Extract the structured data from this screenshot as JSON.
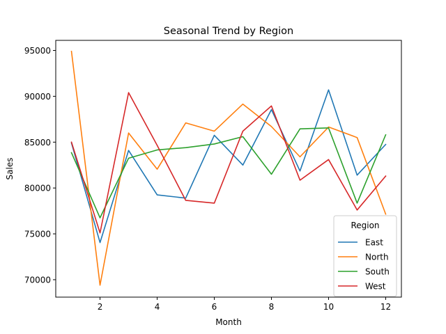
{
  "chart_data": {
    "type": "line",
    "title": "Seasonal Trend by Region",
    "xlabel": "Month",
    "ylabel": "Sales",
    "xlim": [
      0.45,
      12.55
    ],
    "ylim": [
      68100,
      96100
    ],
    "xticks": [
      2,
      4,
      6,
      8,
      10,
      12
    ],
    "yticks": [
      70000,
      75000,
      80000,
      85000,
      90000,
      95000
    ],
    "grid": false,
    "legend": {
      "title": "Region",
      "placement": "lower-right"
    },
    "x": [
      1,
      2,
      3,
      4,
      5,
      6,
      7,
      8,
      9,
      10,
      11,
      12
    ],
    "series": [
      {
        "name": "East",
        "color": "#1f77b4",
        "values": [
          84900,
          74050,
          84100,
          79250,
          78900,
          85750,
          82500,
          88550,
          81850,
          90700,
          81400,
          84750
        ]
      },
      {
        "name": "North",
        "color": "#ff7f0e",
        "values": [
          94900,
          69400,
          86000,
          82050,
          87100,
          86200,
          89150,
          86700,
          83400,
          86650,
          85500,
          77150
        ]
      },
      {
        "name": "South",
        "color": "#2ca02c",
        "values": [
          83850,
          76750,
          83250,
          84150,
          84400,
          84800,
          85600,
          81500,
          86450,
          86550,
          78350,
          85800
        ]
      },
      {
        "name": "West",
        "color": "#d62728",
        "values": [
          85000,
          75100,
          90400,
          84650,
          78650,
          78350,
          86200,
          88950,
          80850,
          83100,
          77600,
          81300
        ]
      }
    ]
  }
}
